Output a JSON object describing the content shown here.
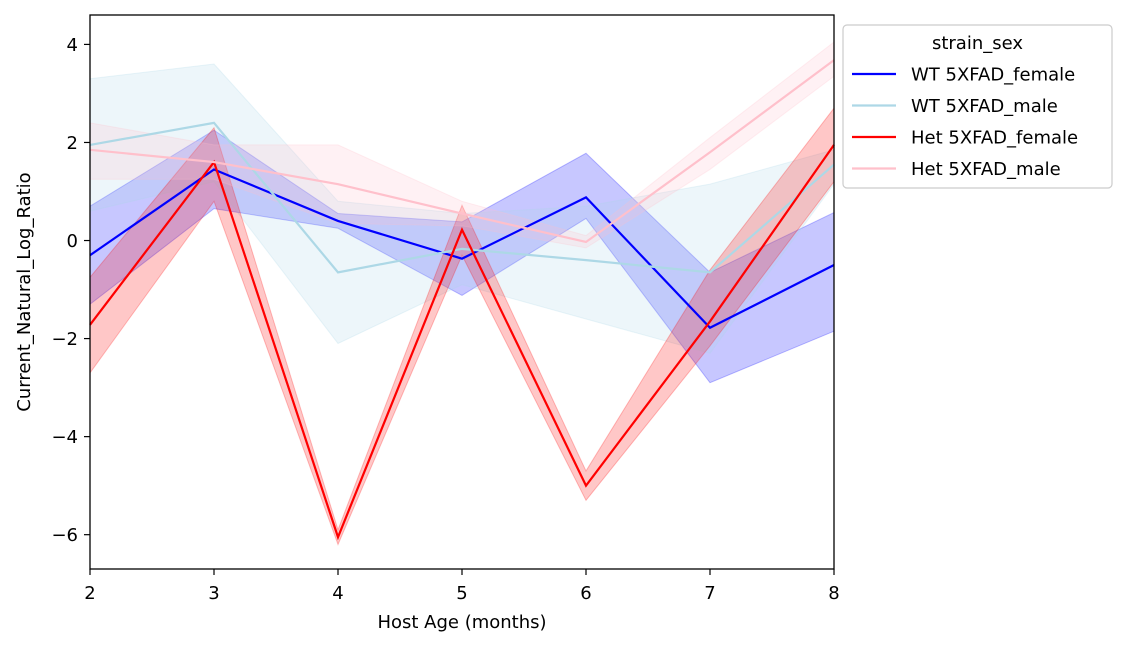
{
  "chart_data": {
    "type": "line",
    "title": "",
    "xlabel": "Host Age (months)",
    "ylabel": "Current_Natural_Log_Ratio",
    "xlim": [
      2,
      8
    ],
    "ylim": [
      -6.7,
      4.6
    ],
    "x_ticks": [
      2,
      3,
      4,
      5,
      6,
      7,
      8
    ],
    "x_tick_labels": [
      "2",
      "3",
      "4",
      "5",
      "6",
      "7",
      "8"
    ],
    "y_ticks": [
      -6,
      -4,
      -2,
      0,
      2,
      4
    ],
    "y_tick_labels": [
      "−6",
      "−4",
      "−2",
      "0",
      "2",
      "4"
    ],
    "grid": false,
    "legend": {
      "title": "strain_sex",
      "placement": "outside-upper-right"
    },
    "x": [
      2,
      3,
      4,
      5,
      6,
      7,
      8
    ],
    "series": [
      {
        "name": "WT 5XFAD_female",
        "color": "#0000ff",
        "values": [
          -0.3,
          1.45,
          0.4,
          -0.37,
          0.88,
          -1.78,
          -0.5
        ],
        "ci_lower": [
          -1.3,
          0.65,
          0.25,
          -1.12,
          0.45,
          -2.9,
          -1.85
        ],
        "ci_upper": [
          0.7,
          2.25,
          0.55,
          0.38,
          1.78,
          -0.65,
          0.57
        ]
      },
      {
        "name": "WT 5XFAD_male",
        "color": "#add8e6",
        "values": [
          1.95,
          2.4,
          -0.65,
          -0.17,
          -0.4,
          -0.65,
          1.55
        ],
        "ci_lower": [
          0.6,
          1.2,
          -2.1,
          -0.9,
          -1.6,
          -2.3,
          1.15
        ],
        "ci_upper": [
          3.3,
          3.6,
          0.8,
          0.55,
          0.7,
          1.15,
          1.85
        ]
      },
      {
        "name": "Het 5XFAD_female",
        "color": "#ff0000",
        "values": [
          -1.72,
          1.6,
          -6.05,
          0.22,
          -5.0,
          -1.65,
          1.95
        ],
        "ci_lower": [
          -2.7,
          0.8,
          -6.2,
          -0.3,
          -5.3,
          -2.15,
          1.2
        ],
        "ci_upper": [
          -0.75,
          2.3,
          -5.9,
          0.72,
          -4.7,
          -0.6,
          2.7
        ]
      },
      {
        "name": "Het 5XFAD_male",
        "color": "#ffc0cb",
        "values": [
          1.85,
          1.6,
          1.15,
          0.55,
          -0.03,
          1.8,
          3.68
        ],
        "ci_lower": [
          1.25,
          1.25,
          0.35,
          0.3,
          -0.15,
          1.45,
          3.35
        ],
        "ci_upper": [
          2.4,
          1.95,
          1.95,
          0.8,
          0.1,
          2.1,
          4.05
        ]
      }
    ]
  }
}
